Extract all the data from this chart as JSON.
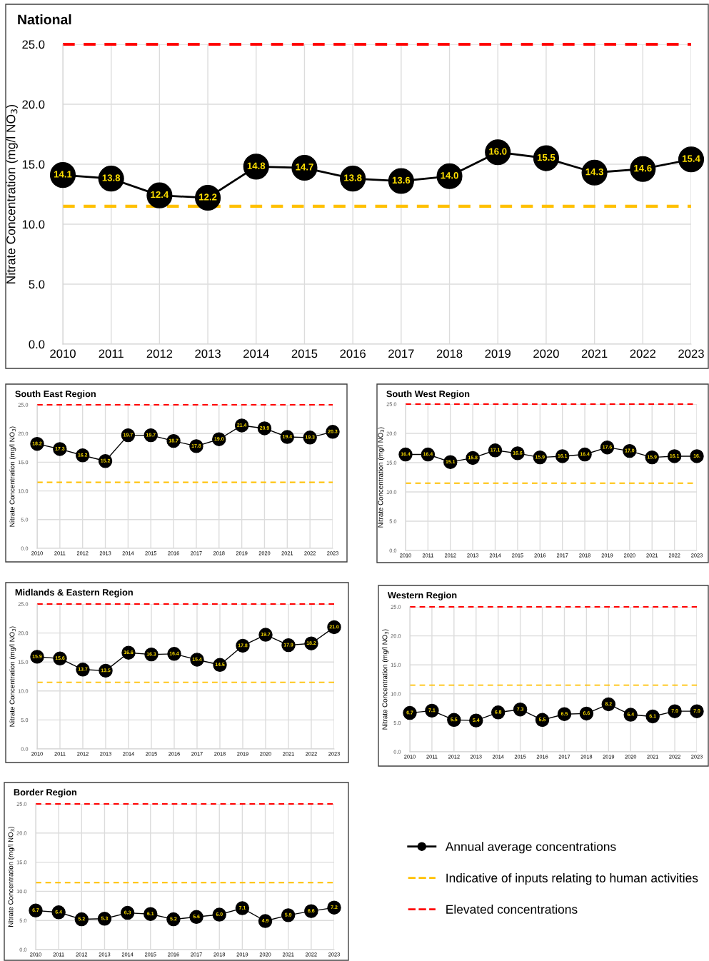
{
  "chart_data": [
    {
      "type": "line",
      "title": "National",
      "ylabel": "Nitrate Concentration (mg/l NO$_{3}$)",
      "categories": [
        "2010",
        "2011",
        "2012",
        "2013",
        "2014",
        "2015",
        "2016",
        "2017",
        "2018",
        "2019",
        "2020",
        "2021",
        "2022",
        "2023"
      ],
      "series": [
        {
          "name": "Annual average concentrations",
          "color": "#000000",
          "values": [
            14.1,
            13.8,
            12.4,
            12.2,
            14.8,
            14.7,
            13.8,
            13.6,
            14.0,
            16.0,
            15.5,
            14.3,
            14.6,
            15.4
          ],
          "value_labels": [
            "14.1",
            "13.8",
            "12.4",
            "12.2",
            "14.8",
            "14.7",
            "13.8",
            "13.6",
            "14.0",
            "16.0",
            "15.5",
            "14.3",
            "14.6",
            "15.4"
          ]
        }
      ],
      "ylim": [
        0,
        25
      ],
      "yticks": [
        {
          "value": 0,
          "label": "0.0"
        },
        {
          "value": 5,
          "label": "5.0"
        },
        {
          "value": 10,
          "label": "10.0"
        },
        {
          "value": 15,
          "label": "15.0"
        },
        {
          "value": 20,
          "label": "20.0"
        },
        {
          "value": 25,
          "label": "25.0"
        }
      ],
      "ref_lines": [
        {
          "axis": "y",
          "value": 11.5,
          "label": "Indicative of inputs relating to human activities",
          "color": "#ffc000",
          "line_style": "dashed"
        },
        {
          "axis": "y",
          "value": 25,
          "label": "Elevated concentrations",
          "color": "#ff0000",
          "line_style": "dashed"
        }
      ],
      "data_labels": true,
      "grid": true,
      "marker": "circle",
      "line_style": "solid",
      "legend": "bottom right"
    },
    {
      "type": "line",
      "title": "South East Region",
      "ylabel": "Nitrate Concentration (mg/l NO$_{3}$)",
      "categories": [
        "2010",
        "2011",
        "2012",
        "2013",
        "2014",
        "2015",
        "2016",
        "2017",
        "2018",
        "2019",
        "2020",
        "2021",
        "2022",
        "2023"
      ],
      "series": [
        {
          "color": "#000000",
          "values": [
            18.2,
            17.3,
            16.2,
            15.2,
            19.7,
            19.7,
            18.7,
            17.8,
            19.0,
            21.4,
            20.9,
            19.4,
            19.3,
            20.3
          ],
          "value_labels": [
            "18.2",
            "17.3",
            "16.2",
            "15.2",
            "19.7",
            "19.7",
            "18.7",
            "17.8",
            "19.0",
            "21.4",
            "20.9",
            "19.4",
            "19.3",
            "20.3"
          ]
        }
      ],
      "ylim": [
        0,
        25
      ],
      "yticks": [
        {
          "value": 0,
          "label": "0.0"
        },
        {
          "value": 5,
          "label": "5.0"
        },
        {
          "value": 10,
          "label": "10.0"
        },
        {
          "value": 15,
          "label": "15.0"
        },
        {
          "value": 20,
          "label": "20.0"
        },
        {
          "value": 25,
          "label": "25.0"
        }
      ],
      "ref_lines": [
        {
          "axis": "y",
          "value": 11.5,
          "color": "#ffc000",
          "line_style": "dashed"
        },
        {
          "axis": "y",
          "value": 25,
          "color": "#ff0000",
          "line_style": "dashed"
        }
      ],
      "data_labels": true,
      "grid": true,
      "marker": "circle",
      "line_style": "solid"
    },
    {
      "type": "line",
      "title": "South West Region",
      "ylabel": "Nitrate Concentration (mg/l NO$_{3}$)",
      "categories": [
        "2010",
        "2011",
        "2012",
        "2013",
        "2014",
        "2015",
        "2016",
        "2017",
        "2018",
        "2019",
        "2020",
        "2021",
        "2022",
        "2023"
      ],
      "series": [
        {
          "color": "#000000",
          "values": [
            16.4,
            16.4,
            15.1,
            15.8,
            17.1,
            16.6,
            15.9,
            16.1,
            16.4,
            17.6,
            17.0,
            15.9,
            16.1,
            16.1
          ],
          "value_labels": [
            "16.4",
            "16.4",
            "15.1",
            "15.8",
            "17.1",
            "16.6",
            "15.9",
            "16.1",
            "16.4",
            "17.6",
            "17.0",
            "15.9",
            "16.1",
            "16."
          ]
        }
      ],
      "ylim": [
        0,
        25
      ],
      "yticks": [
        {
          "value": 0,
          "label": "0.0"
        },
        {
          "value": 5,
          "label": "5.0"
        },
        {
          "value": 10,
          "label": "10.0"
        },
        {
          "value": 15,
          "label": "15.0"
        },
        {
          "value": 20,
          "label": "20.0"
        },
        {
          "value": 25,
          "label": "25.0"
        }
      ],
      "ref_lines": [
        {
          "axis": "y",
          "value": 11.5,
          "color": "#ffc000",
          "line_style": "dashed"
        },
        {
          "axis": "y",
          "value": 25,
          "color": "#ff0000",
          "line_style": "dashed"
        }
      ],
      "data_labels": true,
      "grid": true,
      "marker": "circle",
      "line_style": "solid"
    },
    {
      "type": "line",
      "title": "Midlands & Eastern Region",
      "ylabel": "Nitrate Concentration (mg/l NO$_{3}$)",
      "categories": [
        "2010",
        "2011",
        "2012",
        "2013",
        "2014",
        "2015",
        "2016",
        "2017",
        "2018",
        "2019",
        "2020",
        "2021",
        "2022",
        "2023"
      ],
      "series": [
        {
          "color": "#000000",
          "values": [
            15.9,
            15.6,
            13.7,
            13.5,
            16.6,
            16.3,
            16.4,
            15.4,
            14.5,
            17.8,
            19.7,
            17.9,
            18.2,
            21.0
          ],
          "value_labels": [
            "15.9",
            "15.6",
            "13.7",
            "13.5",
            "16.6",
            "16.3",
            "16.4",
            "15.4",
            "14.5",
            "17.8",
            "19.7",
            "17.9",
            "18.2",
            "21.0"
          ]
        }
      ],
      "ylim": [
        0,
        25
      ],
      "yticks": [
        {
          "value": 0,
          "label": "0.0"
        },
        {
          "value": 5,
          "label": "5.0"
        },
        {
          "value": 10,
          "label": "10.0"
        },
        {
          "value": 15,
          "label": "15.0"
        },
        {
          "value": 20,
          "label": "20.0"
        },
        {
          "value": 25,
          "label": "25.0"
        }
      ],
      "ref_lines": [
        {
          "axis": "y",
          "value": 11.5,
          "color": "#ffc000",
          "line_style": "dashed"
        },
        {
          "axis": "y",
          "value": 25,
          "color": "#ff0000",
          "line_style": "dashed"
        }
      ],
      "data_labels": true,
      "grid": true,
      "marker": "circle",
      "line_style": "solid"
    },
    {
      "type": "line",
      "title": "Western Region",
      "ylabel": "Nitrate Concentration (mg/l NO$_{3}$)",
      "categories": [
        "2010",
        "2011",
        "2012",
        "2013",
        "2014",
        "2015",
        "2016",
        "2017",
        "2018",
        "2019",
        "2020",
        "2021",
        "2022",
        "2023"
      ],
      "series": [
        {
          "color": "#000000",
          "values": [
            6.7,
            7.1,
            5.5,
            5.4,
            6.8,
            7.3,
            5.5,
            6.5,
            6.6,
            8.2,
            6.4,
            6.1,
            7.0,
            7.0
          ],
          "value_labels": [
            "6.7",
            "7.1",
            "5.5",
            "5.4",
            "6.8",
            "7.3",
            "5.5",
            "6.5",
            "6.6",
            "8.2",
            "6.4",
            "6.1",
            "7.0",
            "7.0"
          ]
        }
      ],
      "ylim": [
        0,
        25
      ],
      "yticks": [
        {
          "value": 0,
          "label": "0.0"
        },
        {
          "value": 5,
          "label": "5.0"
        },
        {
          "value": 10,
          "label": "10.0"
        },
        {
          "value": 15,
          "label": "15.0"
        },
        {
          "value": 20,
          "label": "20.0"
        },
        {
          "value": 25,
          "label": "25.0"
        }
      ],
      "ref_lines": [
        {
          "axis": "y",
          "value": 11.5,
          "color": "#ffc000",
          "line_style": "dashed"
        },
        {
          "axis": "y",
          "value": 25,
          "color": "#ff0000",
          "line_style": "dashed"
        }
      ],
      "data_labels": true,
      "grid": true,
      "marker": "circle",
      "line_style": "solid"
    },
    {
      "type": "line",
      "title": "Border Region",
      "ylabel": "Nitrate Concentration (mg/l NO$_{3}$)",
      "categories": [
        "2010",
        "2011",
        "2012",
        "2013",
        "2014",
        "2015",
        "2016",
        "2017",
        "2018",
        "2019",
        "2020",
        "2021",
        "2022",
        "2023"
      ],
      "series": [
        {
          "color": "#000000",
          "values": [
            6.7,
            6.4,
            5.2,
            5.3,
            6.3,
            6.1,
            5.2,
            5.6,
            6.0,
            7.1,
            4.9,
            5.9,
            6.6,
            7.2
          ],
          "value_labels": [
            "6.7",
            "6.4",
            "5.2",
            "5.3",
            "6.3",
            "6.1",
            "5.2",
            "5.6",
            "6.0",
            "7.1",
            "4.9",
            "5.9",
            "6.6",
            "7.2"
          ]
        }
      ],
      "ylim": [
        0,
        25
      ],
      "yticks": [
        {
          "value": 0,
          "label": "0.0"
        },
        {
          "value": 5,
          "label": "5.0"
        },
        {
          "value": 10,
          "label": "10.0"
        },
        {
          "value": 15,
          "label": "15.0"
        },
        {
          "value": 20,
          "label": "20.0"
        },
        {
          "value": 25,
          "label": "25.0"
        }
      ],
      "ref_lines": [
        {
          "axis": "y",
          "value": 11.5,
          "color": "#ffc000",
          "line_style": "dashed"
        },
        {
          "axis": "y",
          "value": 25,
          "color": "#ff0000",
          "line_style": "dashed"
        }
      ],
      "data_labels": true,
      "grid": true,
      "marker": "circle",
      "line_style": "solid"
    }
  ]
}
